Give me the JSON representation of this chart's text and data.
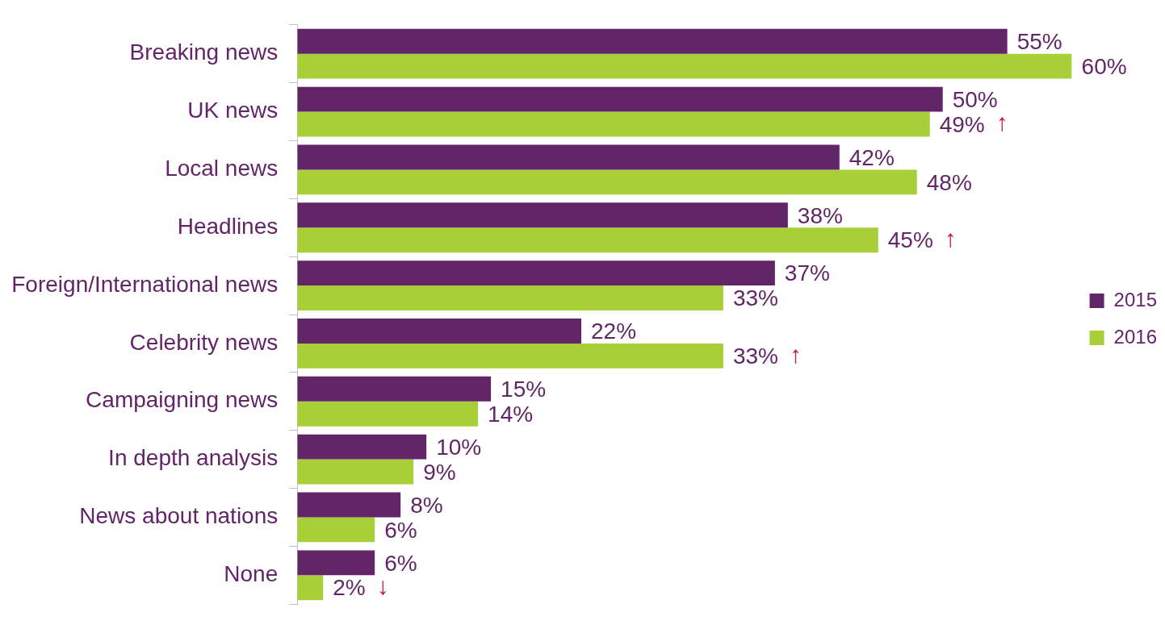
{
  "chart_data": {
    "type": "bar",
    "orientation": "horizontal",
    "categories": [
      "Breaking news",
      "UK news",
      "Local news",
      "Headlines",
      "Foreign/International news",
      "Celebrity news",
      "Campaigning news",
      "In depth analysis",
      "News about nations",
      "None"
    ],
    "series": [
      {
        "name": "2015",
        "color": "#622567",
        "values": [
          55,
          50,
          42,
          38,
          37,
          22,
          15,
          10,
          8,
          6
        ],
        "value_labels": [
          "55%",
          "50%",
          "42%",
          "38%",
          "37%",
          "22%",
          "15%",
          "10%",
          "8%",
          "6%"
        ]
      },
      {
        "name": "2016",
        "color": "#a8cf38",
        "values": [
          60,
          49,
          48,
          45,
          33,
          33,
          14,
          9,
          6,
          2
        ],
        "value_labels": [
          "60%",
          "49%",
          "48%",
          "45%",
          "33%",
          "33%",
          "14%",
          "9%",
          "6%",
          "2%"
        ]
      }
    ],
    "xlim": [
      0,
      60
    ],
    "grid": false,
    "legend": "right",
    "annotations": [
      {
        "text": "↑",
        "x": 49,
        "y": "UK news"
      },
      {
        "text": "↑",
        "x": 45,
        "y": "Headlines"
      },
      {
        "text": "↑",
        "x": 33,
        "y": "Celebrity news"
      },
      {
        "text": "↓",
        "x": 2,
        "y": "None"
      }
    ]
  }
}
